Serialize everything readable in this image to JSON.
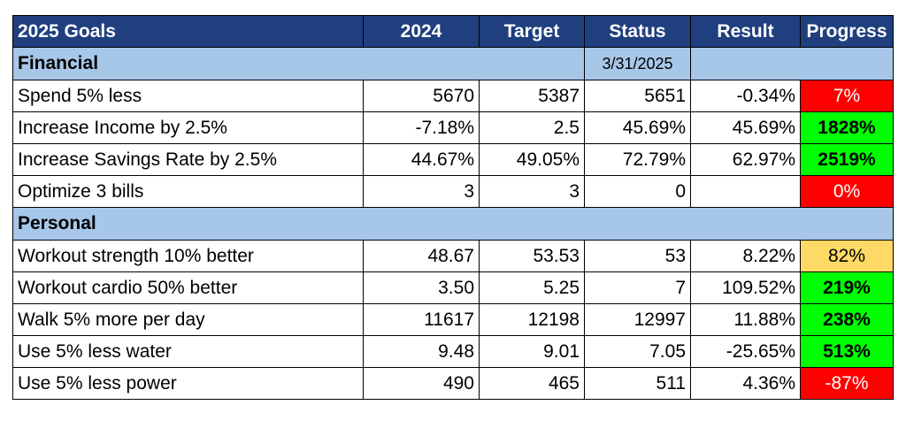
{
  "header": {
    "goals": "2025 Goals",
    "year": "2024",
    "target": "Target",
    "status": "Status",
    "result": "Result",
    "progress": "Progress"
  },
  "sections": {
    "financial": {
      "title": "Financial",
      "date": "3/31/2025",
      "rows": [
        {
          "goal": "Spend 5% less",
          "y2024": "5670",
          "target": "5387",
          "status": "5651",
          "result": "-0.34%",
          "progress": "7%",
          "color": "#ff0000",
          "text_color": "#ffffff"
        },
        {
          "goal": "Increase Income by 2.5%",
          "y2024": "-7.18%",
          "target": "2.5",
          "status": "45.69%",
          "result": "45.69%",
          "progress": "1828%",
          "color": "#00ff00",
          "text_color": "#000000"
        },
        {
          "goal": "Increase Savings Rate by 2.5%",
          "y2024": "44.67%",
          "target": "49.05%",
          "status": "72.79%",
          "result": "62.97%",
          "progress": "2519%",
          "color": "#00ff00",
          "text_color": "#000000"
        },
        {
          "goal": "Optimize 3 bills",
          "y2024": "3",
          "target": "3",
          "status": "0",
          "result": "",
          "progress": "0%",
          "color": "#ff0000",
          "text_color": "#ffffff"
        }
      ]
    },
    "personal": {
      "title": "Personal",
      "rows": [
        {
          "goal": "Workout strength 10% better",
          "y2024": "48.67",
          "target": "53.53",
          "status": "53",
          "result": "8.22%",
          "progress": "82%",
          "color": "#ffd966",
          "text_color": "#000000"
        },
        {
          "goal": "Workout cardio 50% better",
          "y2024": "3.50",
          "target": "5.25",
          "status": "7",
          "result": "109.52%",
          "progress": "219%",
          "color": "#00ff00",
          "text_color": "#000000"
        },
        {
          "goal": "Walk 5% more per day",
          "y2024": "11617",
          "target": "12198",
          "status": "12997",
          "result": "11.88%",
          "progress": "238%",
          "color": "#00ff00",
          "text_color": "#000000"
        },
        {
          "goal": "Use 5% less water",
          "y2024": "9.48",
          "target": "9.01",
          "status": "7.05",
          "result": "-25.65%",
          "progress": "513%",
          "color": "#00ff00",
          "text_color": "#000000"
        },
        {
          "goal": "Use 5% less power",
          "y2024": "490",
          "target": "465",
          "status": "511",
          "result": "4.36%",
          "progress": "-87%",
          "color": "#ff0000",
          "text_color": "#ffffff"
        }
      ]
    }
  },
  "colors": {
    "header_bg": "#1f3f7f",
    "section_bg": "#a7c7e9",
    "good": "#00ff00",
    "warn": "#ffd966",
    "bad": "#ff0000"
  }
}
